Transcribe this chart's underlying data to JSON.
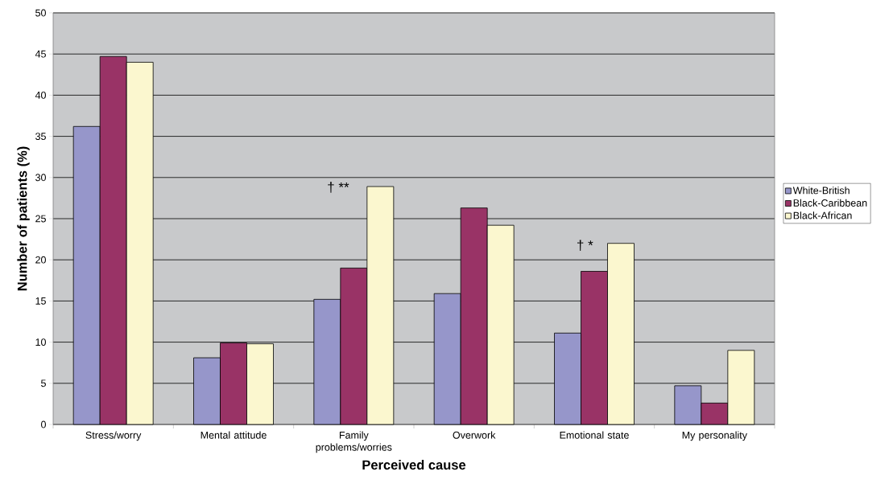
{
  "chart_data": {
    "type": "bar",
    "xlabel": "Perceived cause",
    "ylabel": "Number of patients (%)",
    "categories": [
      "Stress/worry",
      "Mental attitude",
      "Family problems/worries",
      "Overwork",
      "Emotional state",
      "My personality"
    ],
    "series": [
      {
        "name": "White-British",
        "color": "#9696ca",
        "values": [
          36.2,
          8.1,
          15.2,
          15.9,
          11.1,
          4.7
        ]
      },
      {
        "name": "Black-Caribbean",
        "color": "#993366",
        "values": [
          44.7,
          9.9,
          19.0,
          26.3,
          18.6,
          2.6
        ]
      },
      {
        "name": "Black-African",
        "color": "#fbf7cf",
        "values": [
          44.0,
          9.8,
          28.9,
          24.2,
          22.0,
          9.0
        ]
      }
    ],
    "ylim": [
      0,
      50
    ],
    "yticks": [
      0,
      5,
      10,
      15,
      20,
      25,
      30,
      35,
      40,
      45,
      50
    ],
    "grid": "y",
    "legend": "right",
    "annotations": [
      "† **",
      "† *"
    ]
  }
}
